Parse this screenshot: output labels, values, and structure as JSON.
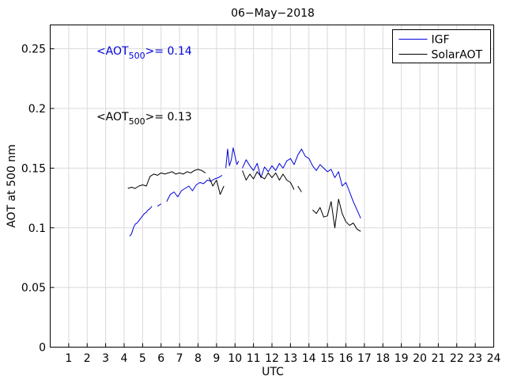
{
  "chart_data": {
    "type": "line",
    "title": "06−May−2018",
    "xlabel": "UTC",
    "ylabel": "AOT at 500 nm",
    "xlim": [
      0,
      24
    ],
    "ylim": [
      0,
      0.27
    ],
    "x_ticks": [
      1,
      2,
      3,
      4,
      5,
      6,
      7,
      8,
      9,
      10,
      11,
      12,
      13,
      14,
      15,
      16,
      17,
      18,
      19,
      20,
      21,
      22,
      23,
      24
    ],
    "y_ticks": [
      0,
      0.05,
      0.1,
      0.15,
      0.2,
      0.25
    ],
    "y_tick_labels": [
      "0",
      "0.05",
      "0.1",
      "0.15",
      "0.2",
      "0.25"
    ],
    "grid": true,
    "legend": "top-right",
    "annotations": [
      {
        "prefix": "<AOT",
        "sub": "500",
        "suffix": ">= 0.14",
        "color": "#0000dd",
        "x": 2.5,
        "y": 0.245
      },
      {
        "prefix": "<AOT",
        "sub": "500",
        "suffix": ">= 0.13",
        "color": "#000000",
        "x": 2.5,
        "y": 0.19
      }
    ],
    "series": [
      {
        "name": "IGF",
        "color": "#0000dd",
        "segments": [
          {
            "x": [
              4.3,
              4.4,
              4.5,
              4.6,
              4.7,
              4.8,
              4.9,
              5.0,
              5.1,
              5.2,
              5.3,
              5.4,
              5.5
            ],
            "y": [
              0.093,
              0.095,
              0.1,
              0.103,
              0.104,
              0.106,
              0.108,
              0.11,
              0.112,
              0.113,
              0.115,
              0.116,
              0.118
            ]
          },
          {
            "x": [
              5.8,
              5.9,
              6.0
            ],
            "y": [
              0.118,
              0.119,
              0.12
            ]
          },
          {
            "x": [
              6.3,
              6.5,
              6.7,
              6.9,
              7.1,
              7.3,
              7.5,
              7.7,
              7.9,
              8.1,
              8.3,
              8.5,
              8.7,
              8.9,
              9.1,
              9.3
            ],
            "y": [
              0.122,
              0.128,
              0.13,
              0.126,
              0.131,
              0.133,
              0.135,
              0.131,
              0.136,
              0.138,
              0.137,
              0.14,
              0.139,
              0.141,
              0.142,
              0.144
            ]
          },
          {
            "x": [
              9.5,
              9.6,
              9.7,
              9.8,
              9.9,
              10.0,
              10.1,
              10.2
            ],
            "y": [
              0.15,
              0.166,
              0.152,
              0.157,
              0.167,
              0.16,
              0.153,
              0.156
            ]
          },
          {
            "x": [
              10.4,
              10.6,
              10.8,
              11.0,
              11.2,
              11.4,
              11.6,
              11.8,
              12.0,
              12.2,
              12.4,
              12.6,
              12.8,
              13.0,
              13.2,
              13.4,
              13.6,
              13.8,
              14.0,
              14.2,
              14.4,
              14.6,
              14.8,
              15.0,
              15.2,
              15.4,
              15.6,
              15.8,
              16.0,
              16.2,
              16.4,
              16.6,
              16.8
            ],
            "y": [
              0.15,
              0.157,
              0.152,
              0.148,
              0.154,
              0.142,
              0.151,
              0.147,
              0.152,
              0.148,
              0.154,
              0.15,
              0.156,
              0.158,
              0.153,
              0.161,
              0.166,
              0.16,
              0.158,
              0.152,
              0.148,
              0.153,
              0.15,
              0.147,
              0.149,
              0.142,
              0.147,
              0.135,
              0.138,
              0.13,
              0.122,
              0.115,
              0.108
            ]
          }
        ]
      },
      {
        "name": "SolarAOT",
        "color": "#000000",
        "segments": [
          {
            "x": [
              4.2,
              4.4,
              4.6,
              4.8,
              5.0,
              5.2,
              5.4,
              5.6,
              5.8,
              6.0,
              6.2,
              6.4,
              6.6,
              6.8,
              7.0,
              7.2,
              7.4,
              7.6,
              7.8,
              8.0,
              8.2,
              8.4
            ],
            "y": [
              0.133,
              0.134,
              0.133,
              0.135,
              0.136,
              0.135,
              0.143,
              0.145,
              0.144,
              0.146,
              0.145,
              0.146,
              0.147,
              0.145,
              0.146,
              0.145,
              0.147,
              0.146,
              0.148,
              0.149,
              0.148,
              0.146
            ]
          },
          {
            "x": [
              8.6,
              8.8,
              9.0,
              9.2,
              9.4
            ],
            "y": [
              0.142,
              0.135,
              0.14,
              0.128,
              0.135
            ]
          },
          {
            "x": [
              10.4,
              10.6,
              10.8,
              11.0,
              11.2,
              11.4,
              11.6,
              11.8,
              12.0,
              12.2,
              12.4,
              12.6,
              12.8,
              13.0,
              13.2
            ],
            "y": [
              0.148,
              0.14,
              0.145,
              0.141,
              0.147,
              0.143,
              0.141,
              0.146,
              0.142,
              0.146,
              0.14,
              0.145,
              0.14,
              0.138,
              0.132
            ]
          },
          {
            "x": [
              13.4,
              13.6
            ],
            "y": [
              0.135,
              0.13
            ]
          },
          {
            "x": [
              14.2,
              14.4,
              14.6,
              14.8,
              15.0,
              15.2,
              15.4,
              15.6,
              15.8,
              16.0,
              16.2,
              16.4,
              16.6,
              16.8
            ],
            "y": [
              0.115,
              0.112,
              0.117,
              0.109,
              0.11,
              0.122,
              0.1,
              0.124,
              0.112,
              0.105,
              0.102,
              0.104,
              0.099,
              0.097
            ]
          }
        ]
      }
    ]
  }
}
